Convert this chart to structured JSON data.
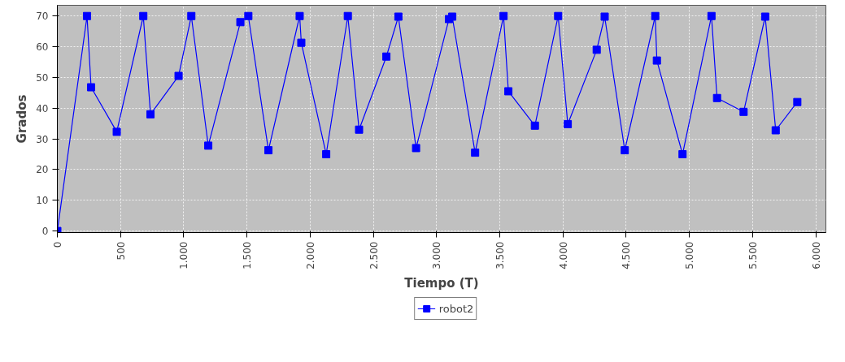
{
  "chart_data": {
    "type": "line",
    "xlabel": "Tiempo (T)",
    "ylabel": "Grados",
    "xlim": [
      0,
      6080
    ],
    "ylim": [
      -0.5,
      73.5
    ],
    "xticks": [
      0,
      500,
      {
        "value": 1000,
        "label": "1.000"
      },
      {
        "value": 1500,
        "label": "1.500"
      },
      {
        "value": 2000,
        "label": "2.000"
      },
      {
        "value": 2500,
        "label": "2.500"
      },
      {
        "value": 3000,
        "label": "3.000"
      },
      {
        "value": 3500,
        "label": "3.500"
      },
      {
        "value": 4000,
        "label": "4.000"
      },
      {
        "value": 4500,
        "label": "4.500"
      },
      {
        "value": 5000,
        "label": "5.000"
      },
      {
        "value": 5500,
        "label": "5.500"
      },
      {
        "value": 6000,
        "label": "6.000"
      }
    ],
    "yticks": [
      0,
      10,
      20,
      30,
      40,
      50,
      60,
      70
    ],
    "x": [
      0,
      235,
      267,
      470,
      680,
      737,
      959,
      1060,
      1194,
      1448,
      1511,
      1670,
      1917,
      1930,
      2127,
      2298,
      2387,
      2603,
      2698,
      2838,
      3098,
      3124,
      3305,
      3530,
      3568,
      3778,
      3962,
      4038,
      4267,
      4330,
      4489,
      4730,
      4743,
      4946,
      5175,
      5219,
      5429,
      5600,
      5683,
      5854
    ],
    "series": [
      {
        "name": "robot2",
        "color": "#0000ff",
        "values": [
          0,
          70,
          46.8,
          32.3,
          70,
          38,
          50.5,
          70,
          27.8,
          68,
          70,
          26.3,
          70,
          61.3,
          25,
          70,
          33,
          56.8,
          69.8,
          27,
          69,
          69.8,
          25.5,
          70,
          45.5,
          34.3,
          70,
          34.8,
          59,
          69.8,
          26.3,
          70,
          55.5,
          25,
          70,
          43.3,
          38.8,
          69.8,
          32.8,
          42
        ]
      }
    ],
    "grid": true,
    "legend": "bottom",
    "marker": "square",
    "line_style": "solid"
  }
}
